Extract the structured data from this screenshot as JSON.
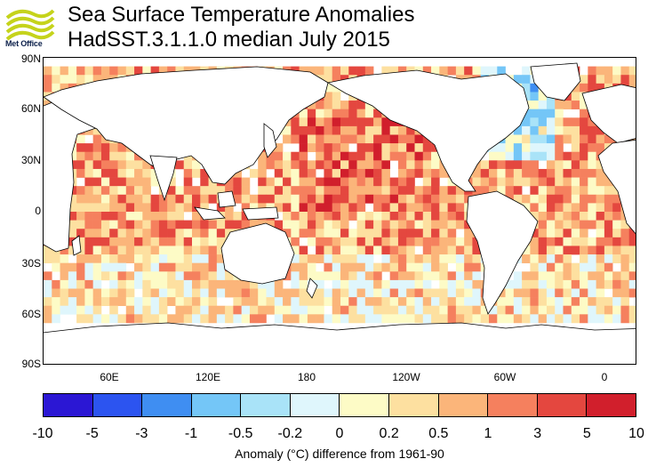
{
  "header": {
    "title": "Sea Surface Temperature Anomalies",
    "subtitle": "HadSST.3.1.1.0 median July 2015",
    "logo_text": "Met Office"
  },
  "map": {
    "lat_labels": [
      "90N",
      "60N",
      "30N",
      "0",
      "30S",
      "60S",
      "90S"
    ],
    "lon_labels": [
      "60E",
      "120E",
      "180",
      "120W",
      "60W",
      "0"
    ],
    "ocean_color": "#ffffff",
    "land_outline_color": "#000000"
  },
  "colorbar": {
    "tick_labels": [
      "-10",
      "-5",
      "-3",
      "-1",
      "-0.5",
      "-0.2",
      "0",
      "0.2",
      "0.5",
      "1",
      "3",
      "5",
      "10"
    ],
    "colors": [
      "#2b17d4",
      "#2c54f0",
      "#3f8ef2",
      "#74c6f7",
      "#a9e3f8",
      "#dff6fc",
      "#fdfbc6",
      "#fde0a0",
      "#fbb57a",
      "#f5805e",
      "#e4473f",
      "#d11f2c",
      "#a3001f"
    ],
    "title": "Anomaly (°C) difference from 1961-90"
  }
}
